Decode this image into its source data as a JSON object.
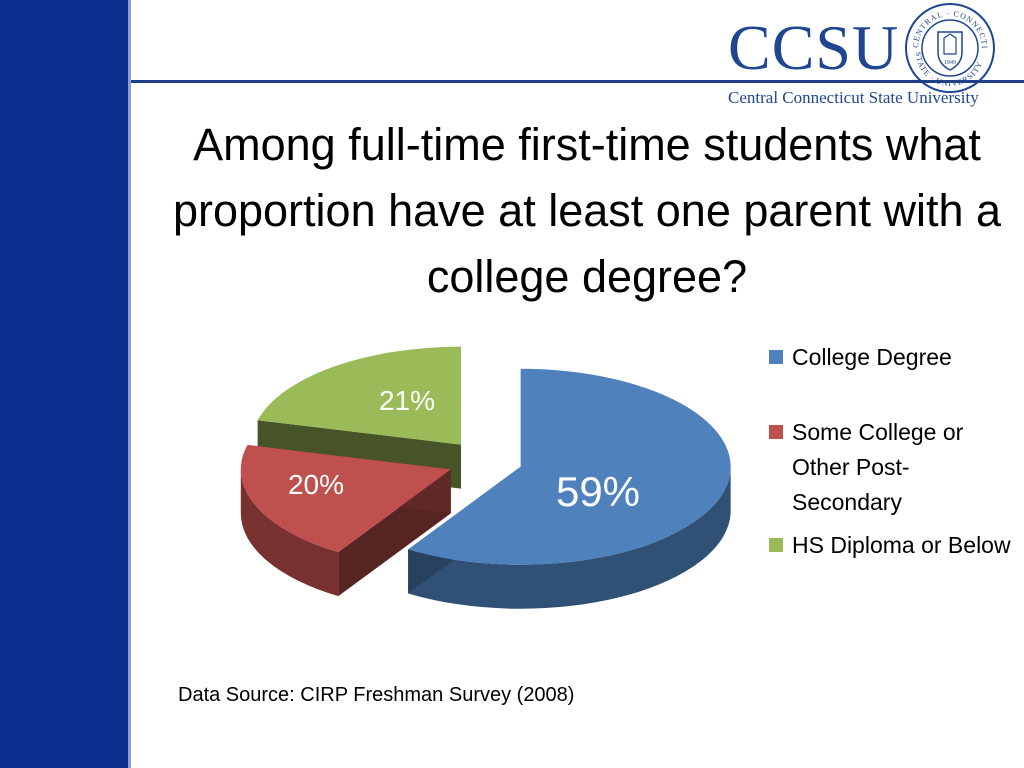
{
  "slide": {
    "title": "Among full-time first-time students what proportion have at least one parent with a college degree?",
    "source_note": "Data Source: CIRP Freshman Survey (2008)"
  },
  "logo": {
    "wordmark": "CCSU",
    "subtitle": "Central Connecticut State University",
    "seal_top_text": "CENTRAL · CONNECTICUT",
    "seal_bottom_text": "STATE · UNIVERSITY",
    "seal_year": "1849"
  },
  "colors": {
    "left_bar": "#0b2f8f",
    "brand_blue": "#1f4690"
  },
  "chart_data": {
    "type": "pie",
    "style": "3d-exploded",
    "title": "",
    "categories": [
      "College Degree",
      "Some College or Other Post-Secondary",
      "HS Diploma or Below"
    ],
    "values": [
      59,
      20,
      21
    ],
    "data_labels": [
      "59%",
      "20%",
      "21%"
    ],
    "colors": [
      "#4f81bd",
      "#c0504d",
      "#9bbb59"
    ],
    "legend_position": "right"
  }
}
